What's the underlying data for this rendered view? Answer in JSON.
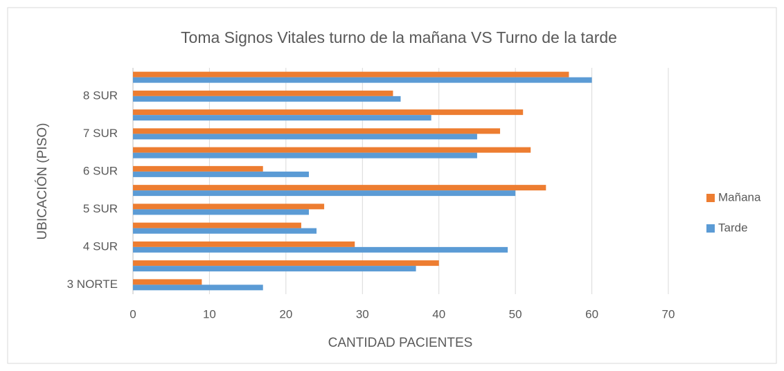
{
  "chart_data": {
    "type": "hbar",
    "title": "Toma Signos Vitales turno de la mañana VS Turno de la tarde",
    "x_label": "CANTIDAD PACIENTES",
    "y_label": "UBICACIÓN (PISO)",
    "categories": [
      "3 NORTE",
      null,
      "4 SUR",
      null,
      "5 SUR",
      null,
      "6 SUR",
      null,
      "7 SUR",
      null,
      "8 SUR",
      null
    ],
    "series": [
      {
        "name": "Mañana",
        "color": "#ed7d31",
        "values": [
          9,
          40,
          29,
          22,
          25,
          54,
          17,
          52,
          48,
          51,
          34,
          57
        ]
      },
      {
        "name": "Tarde",
        "color": "#5b9bd5",
        "values": [
          17,
          37,
          49,
          24,
          23,
          50,
          23,
          45,
          45,
          39,
          35,
          60
        ]
      }
    ],
    "xlim": [
      0,
      70
    ],
    "xticks": [
      0,
      10,
      20,
      30,
      40,
      50,
      60,
      70
    ],
    "grid": true,
    "legend": "right"
  }
}
